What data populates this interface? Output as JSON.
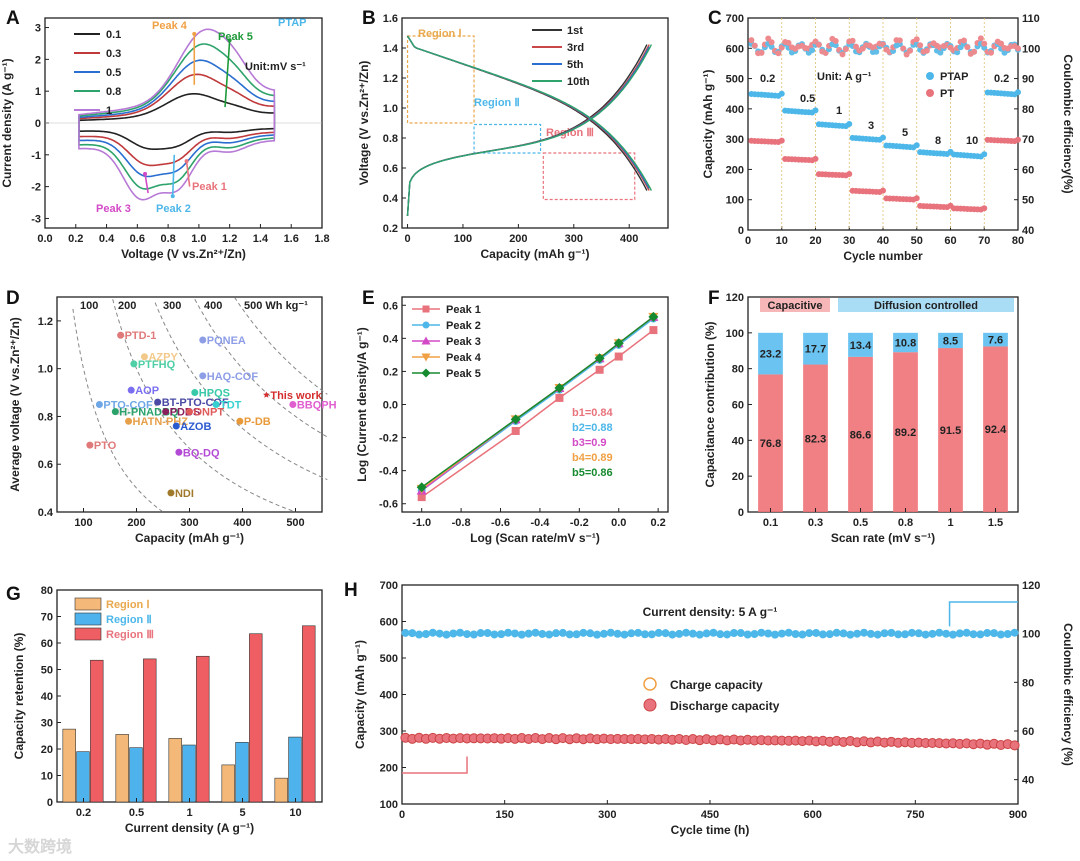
{
  "watermark": "大数跨境",
  "colors": {
    "pink": "#e8737c",
    "blue": "#4db7e9",
    "magenta": "#d34ac7",
    "orange": "#f0a045",
    "green": "#1e9a3a",
    "darkgreen": "#158a2f",
    "gray": "#333333"
  },
  "chart_data": [
    {
      "panel": "A",
      "type": "line",
      "xlabel": "Voltage (V vs.Zn²⁺/Zn)",
      "ylabel": "Current density (A g⁻¹)",
      "xlim": [
        0.0,
        1.8
      ],
      "ylim": [
        -3.3,
        3.3
      ],
      "xticks": [
        "0.0",
        "0.2",
        "0.4",
        "0.6",
        "0.8",
        "1.0",
        "1.2",
        "1.4",
        "1.6",
        "1.8"
      ],
      "yticks": [
        "-3",
        "-2",
        "-1",
        "0",
        "1",
        "2",
        "3"
      ],
      "legend_title": "Unit:mV s⁻¹",
      "label_ptap": "PTAP",
      "series": [
        {
          "name": "0.1",
          "color": "#222222",
          "scale": 0.32
        },
        {
          "name": "0.3",
          "color": "#c0393b",
          "scale": 0.53
        },
        {
          "name": "0.5",
          "color": "#2a6fd0",
          "scale": 0.68
        },
        {
          "name": "0.8",
          "color": "#2ea36b",
          "scale": 0.85
        },
        {
          "name": "1",
          "color": "#b77ad6",
          "scale": 1.0
        }
      ],
      "peaks": [
        {
          "label": "Peak 1",
          "color": "#e8737c"
        },
        {
          "label": "Peak 2",
          "color": "#4db7e9"
        },
        {
          "label": "Peak 3",
          "color": "#d34ac7"
        },
        {
          "label": "Peak 4",
          "color": "#f0a045"
        },
        {
          "label": "Peak 5",
          "color": "#1e9a3a"
        }
      ]
    },
    {
      "panel": "B",
      "type": "line",
      "xlabel": "Capacity (mAh g⁻¹)",
      "ylabel": "Voltage (V vs.Zn²⁺/Zn)",
      "xlim": [
        -10,
        470
      ],
      "ylim": [
        0.2,
        1.6
      ],
      "xticks": [
        "0",
        "100",
        "200",
        "300",
        "400"
      ],
      "yticks": [
        "0.2",
        "0.4",
        "0.6",
        "0.8",
        "1.0",
        "1.2",
        "1.4",
        "1.6"
      ],
      "series": [
        {
          "name": "1st",
          "color": "#333333",
          "capacity": 432
        },
        {
          "name": "3rd",
          "color": "#c8484a",
          "capacity": 436
        },
        {
          "name": "5th",
          "color": "#2a6fd0",
          "capacity": 438
        },
        {
          "name": "10th",
          "color": "#2ea36b",
          "capacity": 440
        }
      ],
      "regions": [
        {
          "label": "Region Ⅰ",
          "color": "#e9a84c",
          "x": [
            0,
            120
          ],
          "y": [
            0.9,
            1.48
          ]
        },
        {
          "label": "Region Ⅱ",
          "color": "#4db7e9",
          "x": [
            120,
            240
          ],
          "y": [
            0.7,
            0.89
          ]
        },
        {
          "label": "Region Ⅲ",
          "color": "#e8737c",
          "x": [
            245,
            410
          ],
          "y": [
            0.39,
            0.7
          ]
        }
      ]
    },
    {
      "panel": "C",
      "type": "scatter",
      "xlabel": "Cycle number",
      "ylabel": "Capacity (mAh g⁻¹)",
      "y2label": "Coulombic efficiency(%)",
      "xlim": [
        0,
        80
      ],
      "ylim": [
        0,
        700
      ],
      "y2lim": [
        40,
        110
      ],
      "xticks": [
        "0",
        "10",
        "20",
        "30",
        "40",
        "50",
        "60",
        "70",
        "80"
      ],
      "yticks": [
        "0",
        "100",
        "200",
        "300",
        "400",
        "500",
        "600",
        "700"
      ],
      "y2ticks": [
        "40",
        "50",
        "60",
        "70",
        "80",
        "90",
        "100",
        "110"
      ],
      "unit_label": "Unit: A g⁻¹",
      "rate_labels": [
        "0.2",
        "0.5",
        "1",
        "3",
        "5",
        "8",
        "10",
        "0.2"
      ],
      "legend": [
        "PTAP",
        "PT"
      ],
      "ptap_capacity": [
        450,
        395,
        350,
        305,
        280,
        258,
        250,
        455
      ],
      "pt_capacity": [
        295,
        235,
        185,
        130,
        105,
        80,
        72,
        298
      ]
    },
    {
      "panel": "D",
      "type": "scatter",
      "xlabel": "Capacity (mAh g⁻¹)",
      "ylabel": "Average voltage (V vs.Zn²⁺/Zn)",
      "xlim": [
        50,
        550
      ],
      "ylim": [
        0.4,
        1.3
      ],
      "xticks": [
        "100",
        "200",
        "300",
        "400",
        "500"
      ],
      "yticks": [
        "0.4",
        "0.6",
        "0.8",
        "1.0",
        "1.2"
      ],
      "energy_labels": [
        "100",
        "200",
        "300",
        "400",
        "500 Wh kg⁻¹"
      ],
      "points": [
        {
          "name": "PTD-1",
          "x": 170,
          "y": 1.14,
          "color": "#e07a7a"
        },
        {
          "name": "PQNEA",
          "x": 325,
          "y": 1.12,
          "color": "#8e9ee6"
        },
        {
          "name": "AZPY",
          "x": 215,
          "y": 1.05,
          "color": "#f2c98a"
        },
        {
          "name": "PTFHQ",
          "x": 195,
          "y": 1.02,
          "color": "#4fcfa6"
        },
        {
          "name": "HAQ-COF",
          "x": 325,
          "y": 0.97,
          "color": "#8e9ee6"
        },
        {
          "name": "This work",
          "x": 445,
          "y": 0.89,
          "color": "#d42e2e"
        },
        {
          "name": "AOP",
          "x": 190,
          "y": 0.91,
          "color": "#7a6ff0"
        },
        {
          "name": "PTO-COF",
          "x": 130,
          "y": 0.85,
          "color": "#6fa6e6"
        },
        {
          "name": "HPQS",
          "x": 310,
          "y": 0.9,
          "color": "#37c9a8"
        },
        {
          "name": "BT-PTO-COF",
          "x": 240,
          "y": 0.86,
          "color": "#4a4aa6"
        },
        {
          "name": "TDT",
          "x": 350,
          "y": 0.85,
          "color": "#36d0d0"
        },
        {
          "name": "BBQPH",
          "x": 495,
          "y": 0.85,
          "color": "#e05fd0"
        },
        {
          "name": "DTT",
          "x": 165,
          "y": 0.82,
          "color": "#dddddd"
        },
        {
          "name": "H-PNADBQ",
          "x": 160,
          "y": 0.82,
          "color": "#2aa36b"
        },
        {
          "name": "PDBS",
          "x": 255,
          "y": 0.82,
          "color": "#8a1f5e"
        },
        {
          "name": "ONPT",
          "x": 300,
          "y": 0.82,
          "color": "#e05a5a"
        },
        {
          "name": "P-DB",
          "x": 395,
          "y": 0.78,
          "color": "#e89a3a"
        },
        {
          "name": "HATN-PHZ",
          "x": 185,
          "y": 0.78,
          "color": "#e6a04a"
        },
        {
          "name": "AZOB",
          "x": 275,
          "y": 0.76,
          "color": "#2a5ad0"
        },
        {
          "name": "PTO",
          "x": 112,
          "y": 0.68,
          "color": "#e07a7a"
        },
        {
          "name": "BQ-DQ",
          "x": 280,
          "y": 0.65,
          "color": "#b34ad6"
        },
        {
          "name": "NDI",
          "x": 265,
          "y": 0.48,
          "color": "#a07a2a"
        }
      ]
    },
    {
      "panel": "E",
      "type": "line",
      "xlabel": "Log (Scan rate/mV s⁻¹)",
      "ylabel": "Log (Current density/A g⁻¹)",
      "xlim": [
        -1.1,
        0.25
      ],
      "ylim": [
        -0.65,
        0.65
      ],
      "xticks": [
        "-1.0",
        "-0.8",
        "-0.6",
        "-0.4",
        "-0.2",
        "0.0",
        "0.2"
      ],
      "yticks": [
        "-0.6",
        "-0.4",
        "-0.2",
        "0.0",
        "0.2",
        "0.4",
        "0.6"
      ],
      "x": [
        -1.0,
        -0.523,
        -0.301,
        -0.097,
        0.0,
        0.176
      ],
      "series": [
        {
          "name": "Peak 1",
          "color": "#e8737c",
          "marker": "square",
          "b": "b1=0.84",
          "values": [
            -0.56,
            -0.16,
            0.04,
            0.21,
            0.29,
            0.45
          ]
        },
        {
          "name": "Peak 2",
          "color": "#4db7e9",
          "marker": "circle",
          "b": "b2=0.88",
          "values": [
            -0.52,
            -0.1,
            0.09,
            0.27,
            0.36,
            0.52
          ]
        },
        {
          "name": "Peak 3",
          "color": "#d34ac7",
          "marker": "triangle",
          "b": "b3=0.9",
          "values": [
            -0.52,
            -0.09,
            0.1,
            0.28,
            0.37,
            0.53
          ]
        },
        {
          "name": "Peak 4",
          "color": "#f0a045",
          "marker": "triangle-down",
          "b": "b4=0.89",
          "values": [
            -0.51,
            -0.09,
            0.1,
            0.28,
            0.37,
            0.53
          ]
        },
        {
          "name": "Peak 5",
          "color": "#158a2f",
          "marker": "diamond",
          "b": "b5=0.86",
          "values": [
            -0.5,
            -0.09,
            0.1,
            0.28,
            0.37,
            0.53
          ]
        }
      ]
    },
    {
      "panel": "F",
      "type": "bar",
      "xlabel": "Scan rate (mV s⁻¹)",
      "ylabel": "Capacitance contribution (%)",
      "ylim": [
        0,
        120
      ],
      "yticks": [
        "0",
        "20",
        "40",
        "60",
        "80",
        "100",
        "120"
      ],
      "categories": [
        "0.1",
        "0.3",
        "0.5",
        "0.8",
        "1",
        "1.5"
      ],
      "series": [
        {
          "name": "Capacitive",
          "color": "#ee7277",
          "values": [
            76.8,
            82.3,
            86.6,
            89.2,
            91.5,
            92.4
          ]
        },
        {
          "name": "Diffusion controlled",
          "color": "#5bbdf0",
          "values": [
            23.2,
            17.7,
            13.4,
            10.8,
            8.5,
            7.6
          ]
        }
      ]
    },
    {
      "panel": "G",
      "type": "bar",
      "xlabel": "Current density (A g⁻¹)",
      "ylabel": "Capacity retention (%)",
      "ylim": [
        0,
        80
      ],
      "yticks": [
        "0",
        "10",
        "20",
        "30",
        "40",
        "50",
        "60",
        "70",
        "80"
      ],
      "categories": [
        "0.2",
        "0.5",
        "1",
        "5",
        "10"
      ],
      "series": [
        {
          "name": "Region Ⅰ",
          "color": "#f4b978",
          "text_color": "#e9a84c",
          "values": [
            27.5,
            25.5,
            24,
            14,
            9
          ]
        },
        {
          "name": "Region Ⅱ",
          "color": "#4eb3ec",
          "text_color": "#4db7e9",
          "values": [
            19,
            20.5,
            21.5,
            22.5,
            24.5
          ]
        },
        {
          "name": "Region Ⅲ",
          "color": "#ee5e62",
          "text_color": "#e8737c",
          "values": [
            53.5,
            54,
            55,
            63.5,
            66.5
          ]
        }
      ]
    },
    {
      "panel": "H",
      "type": "scatter",
      "xlabel": "Cycle time (h)",
      "ylabel": "Capacity (mAh g⁻¹)",
      "y2label": "Coulombic efficiency (%)",
      "xlim": [
        0,
        900
      ],
      "ylim": [
        100,
        700
      ],
      "y2lim": [
        30,
        120
      ],
      "xticks": [
        "0",
        "150",
        "300",
        "450",
        "600",
        "750",
        "900"
      ],
      "yticks": [
        "100",
        "200",
        "300",
        "400",
        "500",
        "600",
        "700"
      ],
      "y2ticks": [
        "40",
        "60",
        "80",
        "100",
        "120"
      ],
      "annotation": "Current density: 5 A g⁻¹",
      "legend": [
        "Charge capacity",
        "Discharge capacity"
      ],
      "capacity_start": 280,
      "capacity_end": 262,
      "efficiency": 100
    }
  ]
}
